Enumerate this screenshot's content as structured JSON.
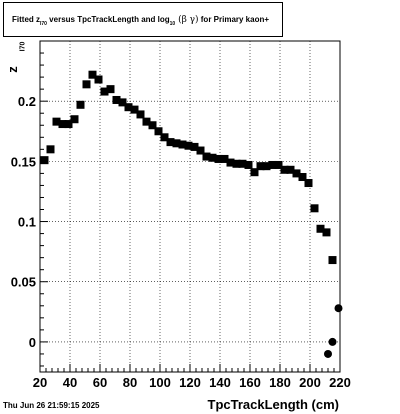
{
  "chart_data": {
    "type": "scatter",
    "title_parts": {
      "prefix": "Fitted  z",
      "z_sub": "I70",
      "middle": "  versus TpcTrackLength and log",
      "log_sub": "10",
      "greek": " (β  γ)",
      "suffix": " for Primary kaon+"
    },
    "xlabel": "TpcTrackLength (cm)",
    "ylabel": "z",
    "ylabel_sub": "I70",
    "xlim": [
      20,
      220
    ],
    "ylim": [
      -0.025,
      0.25
    ],
    "x_ticks": [
      20,
      40,
      60,
      80,
      100,
      120,
      140,
      160,
      180,
      200,
      220
    ],
    "x_tick_labels": [
      "20",
      "40",
      "60",
      "80",
      "100",
      "120",
      "140",
      "160",
      "180",
      "200",
      "220"
    ],
    "y_ticks": [
      0,
      0.05,
      0.1,
      0.15,
      0.2
    ],
    "y_tick_labels": [
      "0",
      "0.05",
      "0.1",
      "0.15",
      "0.2"
    ],
    "grid": true,
    "marker_color": "#000000",
    "series": [
      {
        "marker": "square",
        "x": [
          23,
          27,
          31,
          35,
          39,
          43,
          47,
          51,
          55,
          59,
          63,
          67,
          71,
          75,
          79,
          83,
          87,
          91,
          95,
          99,
          103,
          107,
          111,
          115,
          119,
          123,
          127,
          131,
          135,
          139,
          143,
          147,
          151,
          155,
          159,
          163,
          167,
          171,
          175,
          179,
          183,
          187,
          191,
          195,
          199,
          203,
          207,
          211,
          215,
          219
        ],
        "y": [
          0.151,
          0.16,
          0.183,
          0.181,
          0.181,
          0.185,
          0.197,
          0.214,
          0.222,
          0.218,
          0.208,
          0.21,
          0.201,
          0.199,
          0.195,
          0.193,
          0.189,
          0.183,
          0.18,
          0.175,
          0.17,
          0.166,
          0.165,
          0.164,
          0.163,
          0.162,
          0.159,
          0.154,
          0.153,
          0.152,
          0.152,
          0.149,
          0.148,
          0.148,
          0.147,
          0.141,
          0.146,
          0.146,
          0.147,
          0.147,
          0.143,
          0.143,
          0.14,
          0.137,
          0.132,
          0.111,
          0.094,
          0.091,
          0.068,
          null
        ]
      },
      {
        "marker": "circle",
        "x": [
          212,
          215,
          219
        ],
        "y": [
          -0.01,
          0.0,
          0.028
        ]
      }
    ],
    "timestamp": "Thu Jun 26 21:59:15 2025"
  }
}
